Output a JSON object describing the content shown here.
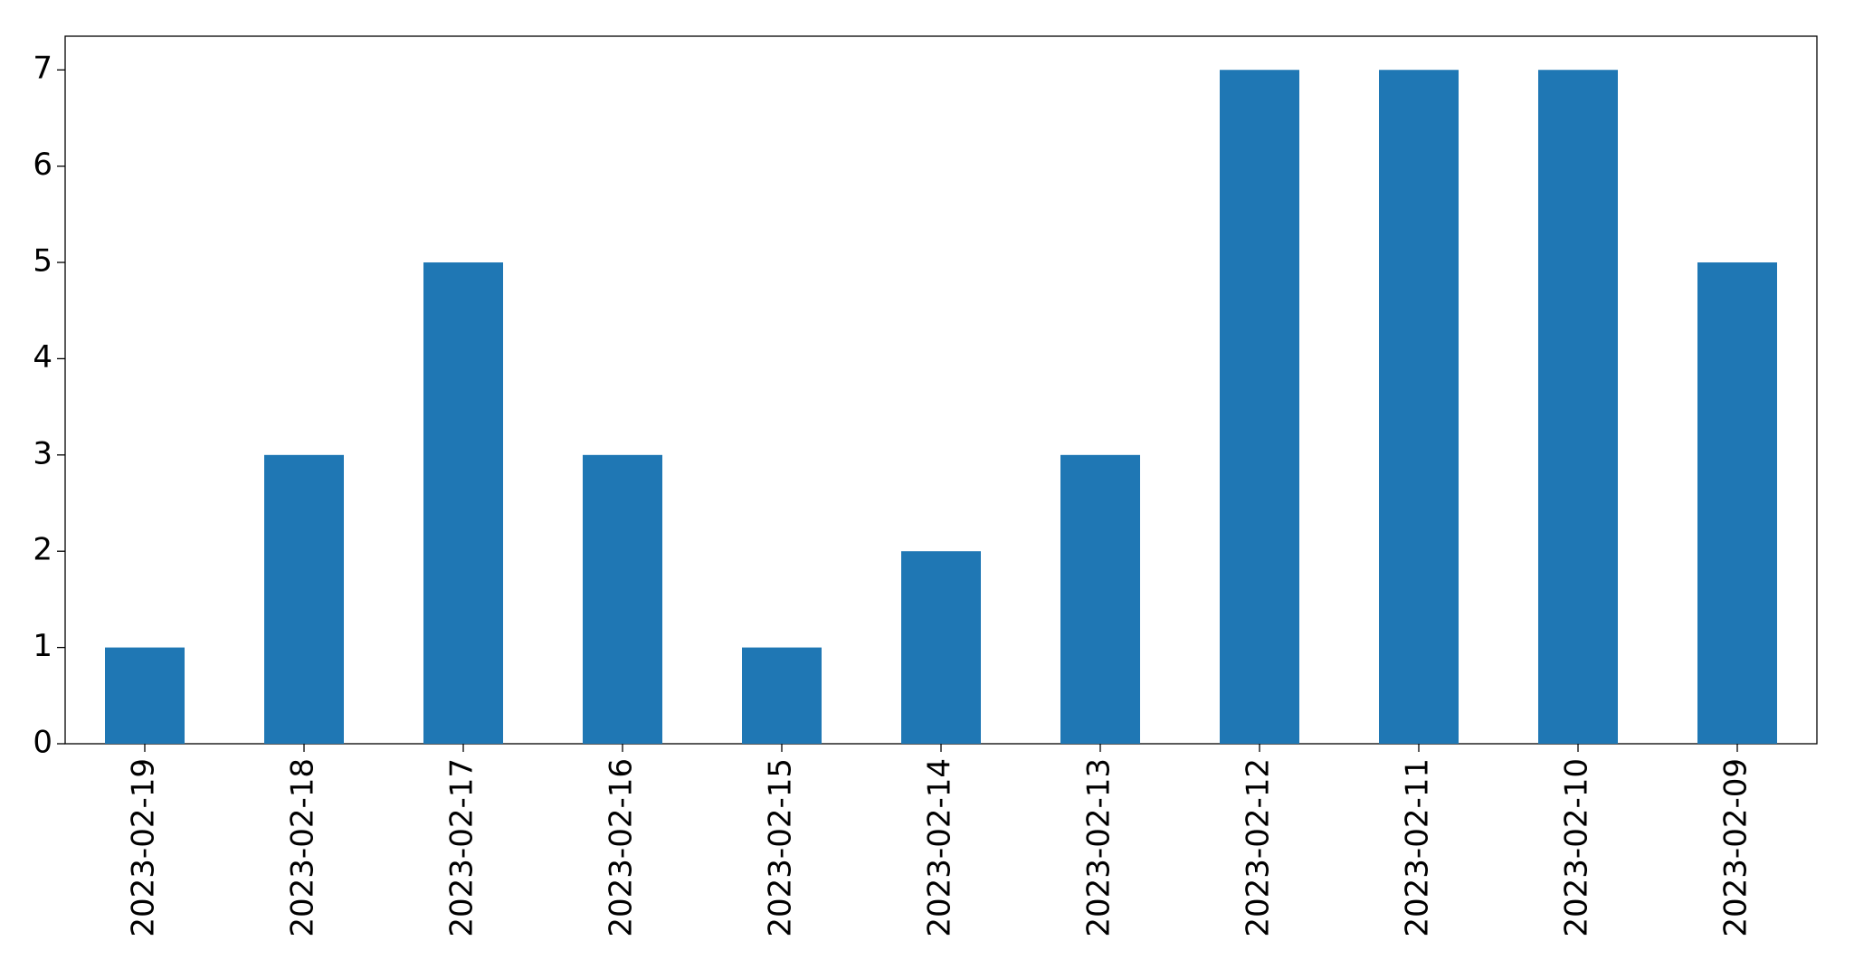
{
  "chart_data": {
    "type": "bar",
    "categories": [
      "2023-02-19",
      "2023-02-18",
      "2023-02-17",
      "2023-02-16",
      "2023-02-15",
      "2023-02-14",
      "2023-02-13",
      "2023-02-12",
      "2023-02-11",
      "2023-02-10",
      "2023-02-09"
    ],
    "values": [
      1,
      3,
      5,
      3,
      1,
      2,
      3,
      7,
      7,
      7,
      5
    ],
    "color": "#1f77b4",
    "ylim": [
      0,
      7.35
    ],
    "yticks": [
      0,
      1,
      2,
      3,
      4,
      5,
      6,
      7
    ],
    "grid": false
  }
}
